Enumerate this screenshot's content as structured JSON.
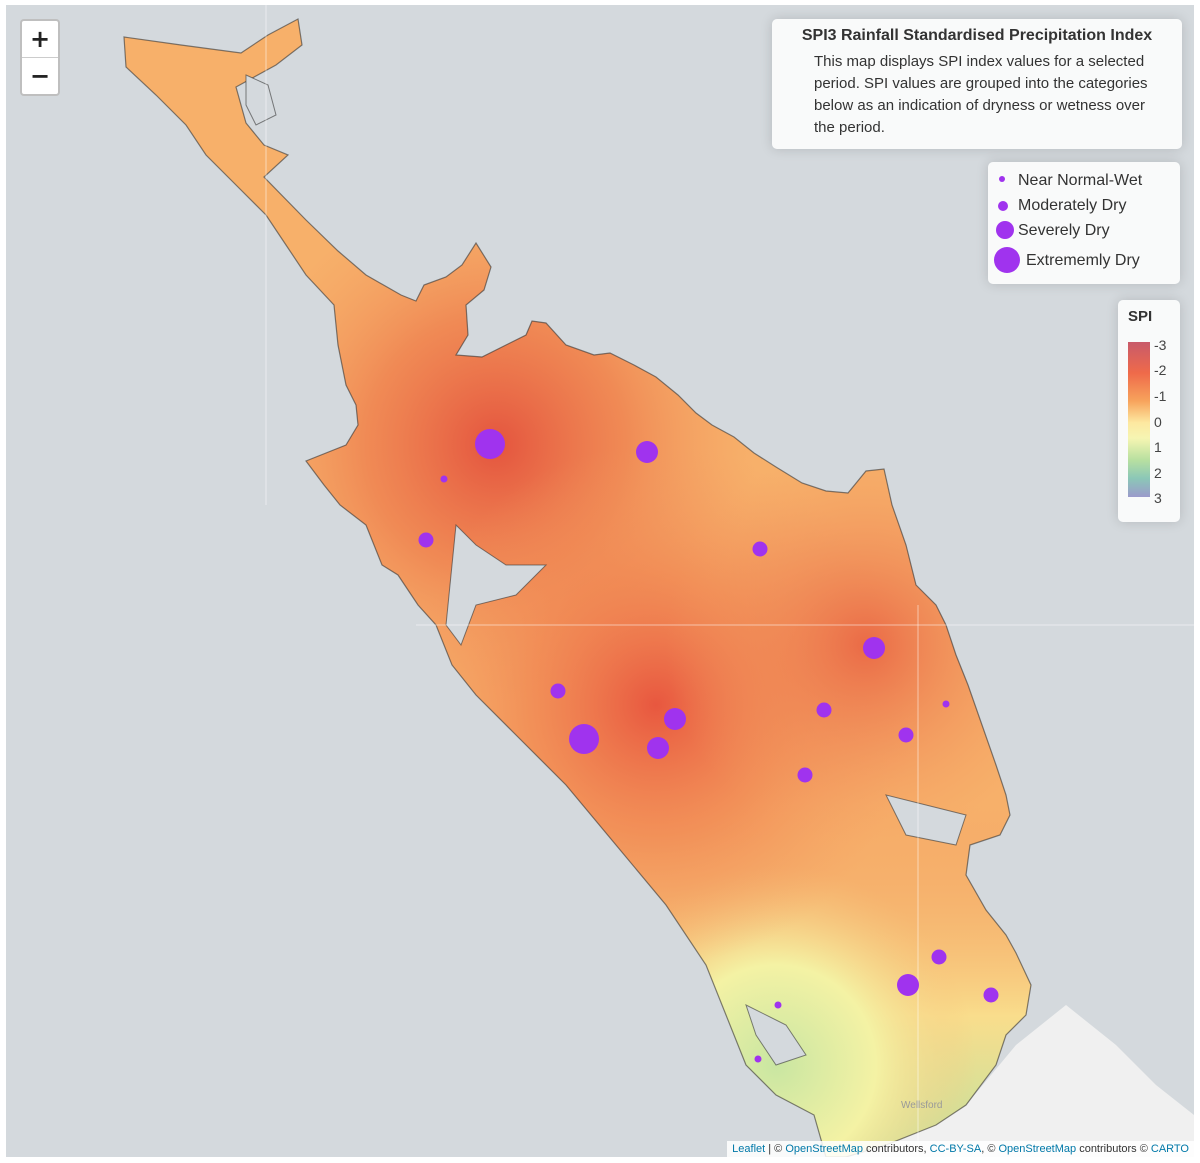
{
  "info": {
    "title": "SPI3 Rainfall Standardised Precipitation Index",
    "description": "This map displays SPI index values for a selected period. SPI values are grouped into the categories below as an indication of dryness or wetness over the period."
  },
  "zoom": {
    "in_label": "+",
    "out_label": "−"
  },
  "legend": {
    "items": [
      {
        "label": "Near Normal-Wet"
      },
      {
        "label": "Moderately Dry"
      },
      {
        "label": "Severely Dry"
      },
      {
        "label": "Extrememly Dry"
      }
    ]
  },
  "spi_legend": {
    "title": "SPI",
    "ticks": [
      "-3",
      "-2",
      "-1",
      "0",
      "1",
      "2",
      "3"
    ]
  },
  "attribution": {
    "leaflet": "Leaflet",
    "osm1": "OpenStreetMap",
    "contributors1": " contributors, ",
    "ccbysa": "CC-BY-SA",
    "osm2": "OpenStreetMap",
    "contributors2": " contributors © ",
    "carto": "CARTO"
  },
  "map_labels": {
    "town": "Wellsford"
  },
  "colors": {
    "marker": "#a033ee",
    "land_dry": "#f29a60",
    "land_very_dry": "#e05a40",
    "land_wet": "#bfe3a0",
    "sea": "#d4d9dd"
  }
}
